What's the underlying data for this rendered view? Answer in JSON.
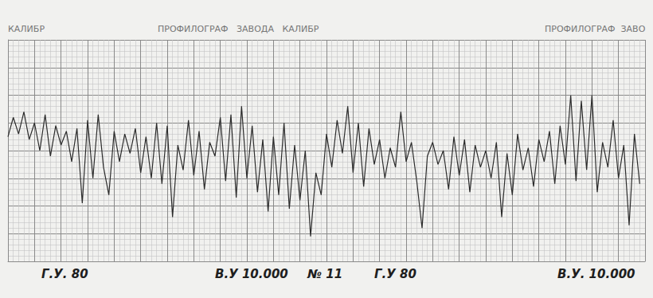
{
  "chart_data": {
    "type": "line",
    "annotations": [
      "КАЛИБР",
      "ПРОФИЛОГРАФ   ЗАВОДА   КАЛИБР",
      "ПРОФИЛОГРАФ  ЗАВО",
      "Г.У. 80",
      "В.У 10.000",
      "№ 11",
      "Г.У 80",
      "В.У. 10.000"
    ],
    "x": [
      0,
      0.2,
      0.4,
      0.6,
      0.8,
      1,
      1.2,
      1.4,
      1.6,
      1.8,
      2,
      2.2,
      2.4,
      2.6,
      2.8,
      3,
      3.2,
      3.4,
      3.6,
      3.8,
      4,
      4.2,
      4.4,
      4.6,
      4.8,
      5,
      5.2,
      5.4,
      5.6,
      5.8,
      6,
      6.2,
      6.4,
      6.6,
      6.8,
      7,
      7.2,
      7.4,
      7.6,
      7.8,
      8,
      8.2,
      8.4,
      8.6,
      8.8,
      9,
      9.2,
      9.4,
      9.6,
      9.8,
      10,
      10.2,
      10.4,
      10.6,
      10.8,
      11,
      11.2,
      11.4,
      11.6,
      11.8,
      12,
      12.2,
      12.4,
      12.6,
      12.8,
      13,
      13.2,
      13.4,
      13.6,
      13.8,
      14,
      14.2,
      14.4,
      14.6,
      14.8,
      15,
      15.2,
      15.4,
      15.6,
      15.8,
      16,
      16.2,
      16.4,
      16.6,
      16.8,
      17,
      17.2,
      17.4,
      17.6,
      17.8,
      18,
      18.2,
      18.4,
      18.6,
      18.8,
      19,
      19.2,
      19.4,
      19.6,
      19.8,
      20,
      20.2,
      20.4,
      20.6,
      20.8,
      21,
      21.2,
      21.4,
      21.6,
      21.8,
      22,
      22.2,
      22.4,
      22.6,
      22.8,
      23,
      23.2,
      23.4,
      23.6,
      23.8
    ],
    "values": [
      4.5,
      5.2,
      4.6,
      5.4,
      4.4,
      5.0,
      4.0,
      5.3,
      3.8,
      4.9,
      4.2,
      4.7,
      3.6,
      4.8,
      2.1,
      5.1,
      3.0,
      5.3,
      3.4,
      2.4,
      4.7,
      3.6,
      4.6,
      3.9,
      4.8,
      3.2,
      4.5,
      3.0,
      5.0,
      2.8,
      4.9,
      1.6,
      4.2,
      3.3,
      5.1,
      3.1,
      4.7,
      2.6,
      4.3,
      3.8,
      5.2,
      2.9,
      5.3,
      2.3,
      5.6,
      3.0,
      4.9,
      2.5,
      4.4,
      1.8,
      4.5,
      2.4,
      5.0,
      1.9,
      4.2,
      2.2,
      4.0,
      0.9,
      3.2,
      2.4,
      4.6,
      3.4,
      5.1,
      3.9,
      5.6,
      3.2,
      5.0,
      2.7,
      4.8,
      3.5,
      4.4,
      3.0,
      4.1,
      3.4,
      5.4,
      3.6,
      4.3,
      2.9,
      1.2,
      3.8,
      4.3,
      3.5,
      4.0,
      2.6,
      4.5,
      3.1,
      4.4,
      2.5,
      4.2,
      3.4,
      4.0,
      3.0,
      4.3,
      1.6,
      3.9,
      2.4,
      4.6,
      3.3,
      4.1,
      2.7,
      4.4,
      3.6,
      4.7,
      2.8,
      4.9,
      3.5,
      6.0,
      2.9,
      5.8,
      3.3,
      6.0,
      2.5,
      4.3,
      3.4,
      5.1,
      3.0,
      4.2,
      1.3,
      4.6,
      2.8
    ],
    "color": "#2b2b2b",
    "line_style": "solid",
    "xlim": [
      0,
      24
    ],
    "xticks": [
      0,
      1,
      2,
      3,
      4,
      5,
      6,
      7,
      8,
      9,
      10,
      11,
      12,
      13,
      14,
      15,
      16,
      17,
      18,
      19,
      20,
      21,
      22,
      23,
      24
    ],
    "ylim": [
      0,
      8
    ],
    "yticks": [
      0,
      1,
      2,
      3,
      4,
      5,
      6,
      7,
      8
    ],
    "grid": true,
    "tick_labels": false
  }
}
